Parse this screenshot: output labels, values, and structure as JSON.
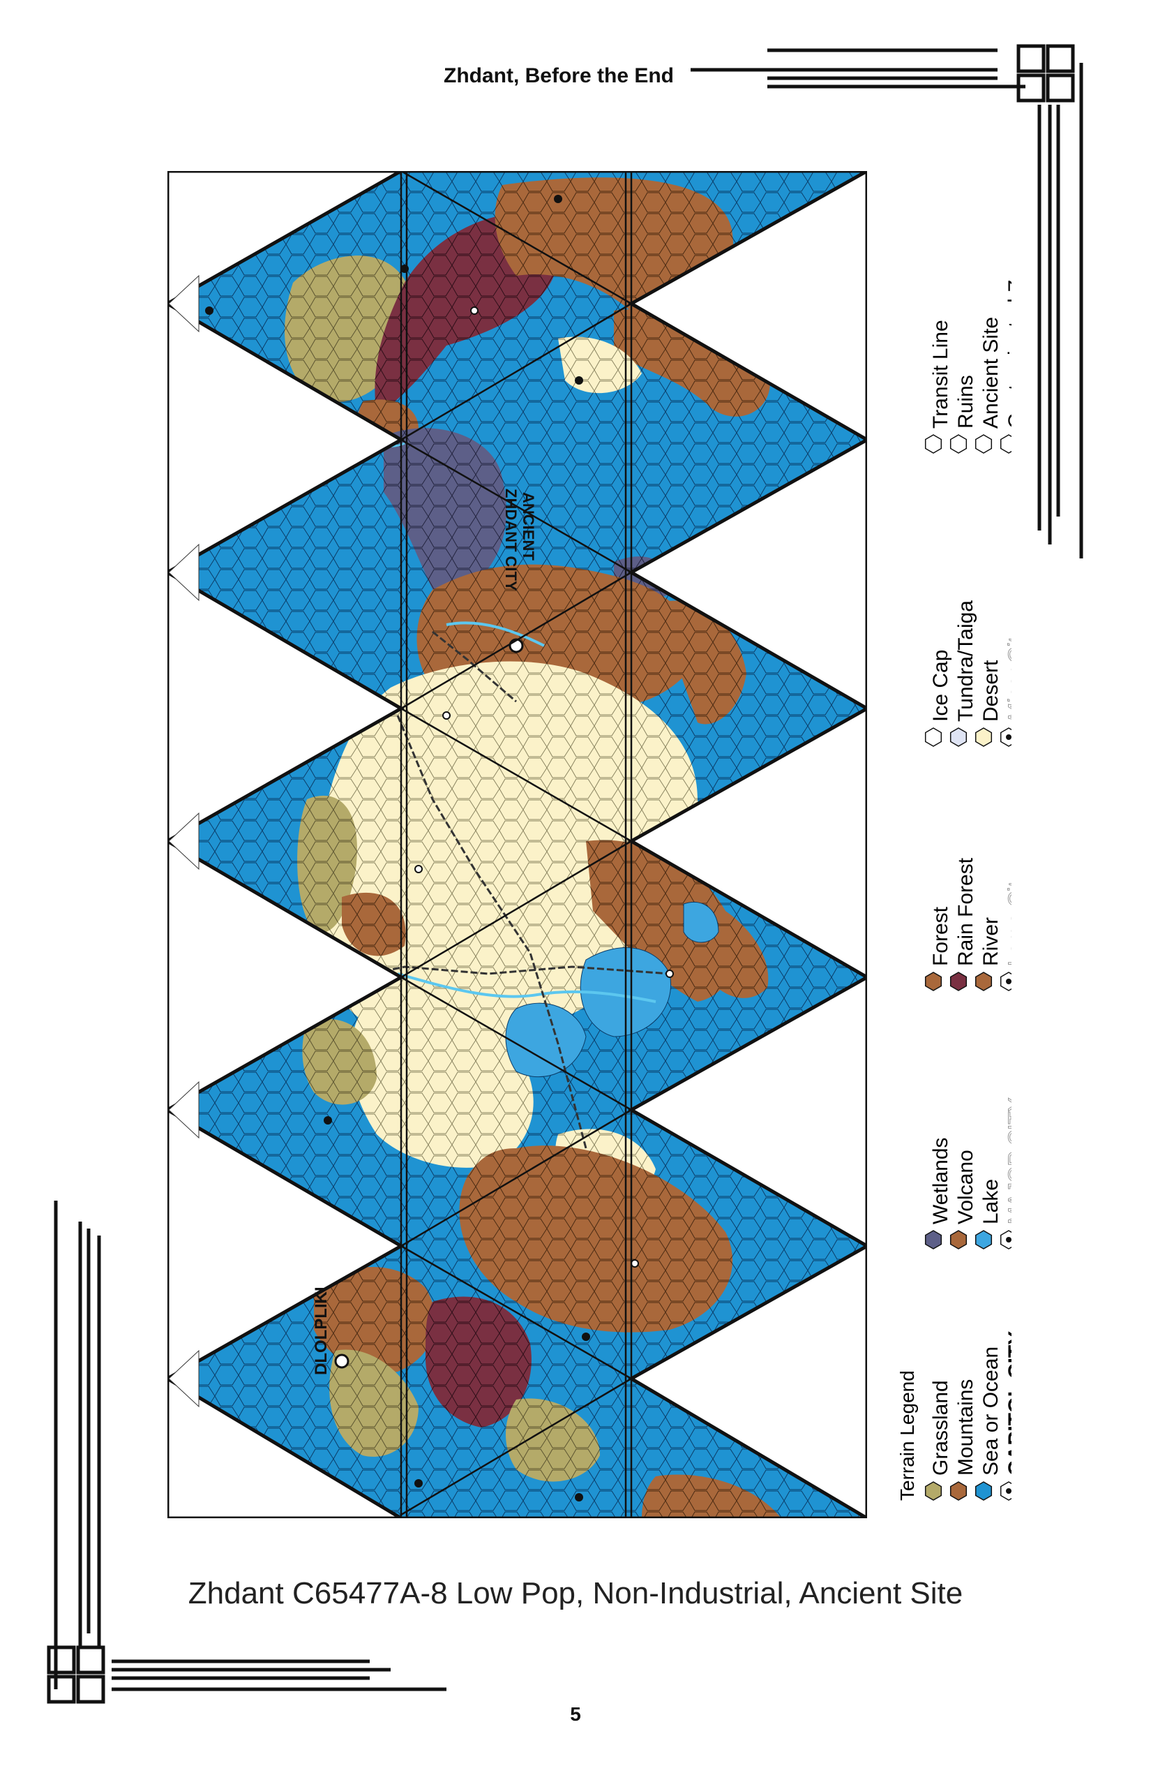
{
  "header": {
    "title": "Zhdant, Before the End"
  },
  "map": {
    "labels": {
      "ancient_city_line1": "ANCIENT",
      "ancient_city_line2": "ZHDANT CITY",
      "capitol": "DLOLPLIKI"
    },
    "colors": {
      "ocean": "#1f93d2",
      "grassland": "#b4aa69",
      "mountains": "#a9683b",
      "desert": "#fbf2c9",
      "rainforest": "#7a3042",
      "wetlands": "#5d5f88",
      "lake": "#3da6e0",
      "ice": "#ffffff"
    }
  },
  "legend": {
    "title": "Terrain Legend",
    "groups": [
      {
        "items": [
          {
            "label": "Grassland",
            "icon": "grassland-hex-icon",
            "color": "#b4aa69"
          },
          {
            "label": "Mountains",
            "icon": "mountains-hex-icon",
            "color": "#a9683b"
          },
          {
            "label": "Sea or Ocean",
            "icon": "ocean-hex-icon",
            "color": "#1f93d2"
          },
          {
            "label": "CAPITOL CITY",
            "icon": "capitol-city-hex-icon",
            "color": "#ffffff"
          }
        ]
      },
      {
        "items": [
          {
            "label": "Wetlands",
            "icon": "wetlands-hex-icon",
            "color": "#5d5f88"
          },
          {
            "label": "Volcano",
            "icon": "volcano-hex-icon",
            "color": "#a9683b"
          },
          {
            "label": "Lake",
            "icon": "lake-hex-icon",
            "color": "#3da6e0"
          },
          {
            "label": "MAJOR CITY",
            "icon": "major-city-hex-icon",
            "color": "#ffffff"
          }
        ]
      },
      {
        "items": [
          {
            "label": "Forest",
            "icon": "forest-hex-icon",
            "color": "#a9683b"
          },
          {
            "label": "Rain Forest",
            "icon": "rainforest-hex-icon",
            "color": "#7a3042"
          },
          {
            "label": "River",
            "icon": "river-hex-icon",
            "color": "#a9683b"
          },
          {
            "label": "Large City",
            "icon": "large-city-hex-icon",
            "color": "#ffffff"
          }
        ]
      },
      {
        "items": [
          {
            "label": "Ice Cap",
            "icon": "icecap-hex-icon",
            "color": "#ffffff"
          },
          {
            "label": "Tundra/Taiga",
            "icon": "tundra-hex-icon",
            "color": "#dfe4f4"
          },
          {
            "label": "Desert",
            "icon": "desert-hex-icon",
            "color": "#fbf2c9"
          },
          {
            "label": "Minor City",
            "icon": "minor-city-hex-icon",
            "color": "#ffffff"
          }
        ]
      },
      {
        "items": [
          {
            "label": "Transit Line",
            "icon": "transit-line-hex-icon",
            "color": "#ffffff"
          },
          {
            "label": "Ruins",
            "icon": "ruins-hex-icon",
            "color": "#ffffff"
          },
          {
            "label": "Ancient Site",
            "icon": "ancient-site-hex-icon",
            "color": "#ffffff"
          },
          {
            "label": "Contaminated Zone",
            "icon": "contaminated-zone-hex-icon",
            "color": "#ffffff"
          }
        ]
      }
    ]
  },
  "caption": "Zhdant C65477A-8 Low Pop, Non-Industrial, Ancient Site",
  "page_number": "5"
}
